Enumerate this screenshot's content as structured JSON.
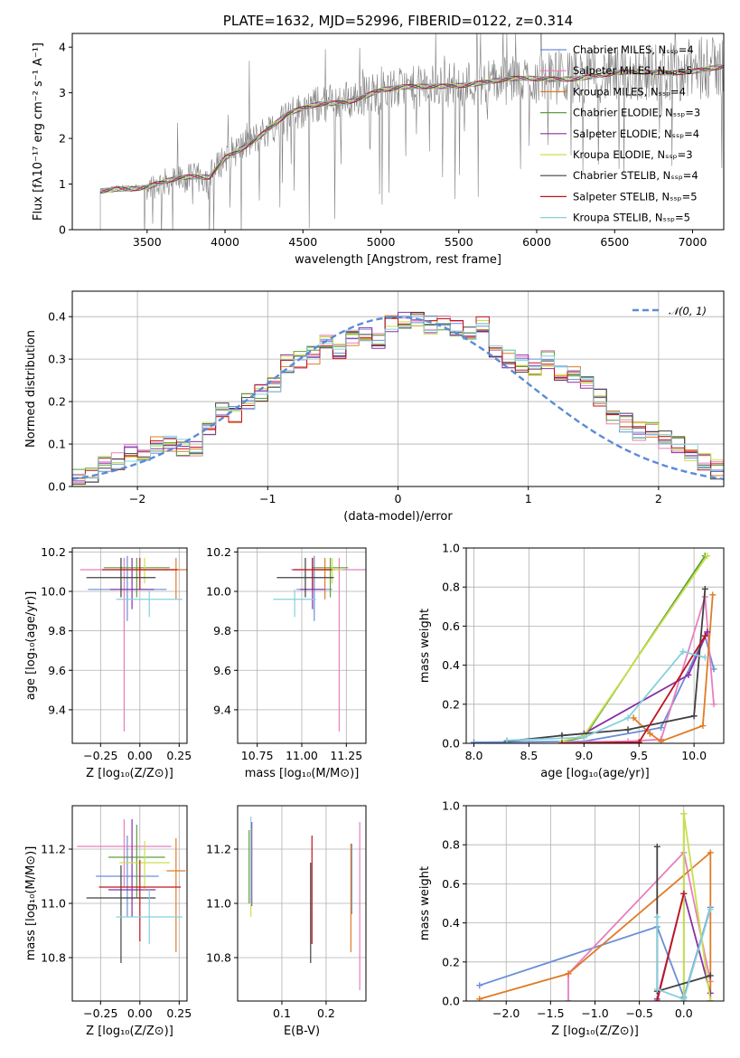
{
  "chart_data": [
    {
      "id": "spectrum",
      "type": "line",
      "title": "PLATE=1632, MJD=52996, FIBERID=0122, z=0.314",
      "xlabel": "wavelength [Angstrom, rest frame]",
      "ylabel": "Flux [fλ10⁻¹⁷ erg cm⁻² s⁻¹ A⁻¹]",
      "xlim": [
        3020,
        7200
      ],
      "ylim": [
        0,
        4.3
      ],
      "xticks": [
        3500,
        4000,
        4500,
        5000,
        5500,
        6000,
        6500,
        7000
      ],
      "yticks": [
        0,
        1,
        2,
        3,
        4
      ],
      "grid": false,
      "legend_position": "top-right",
      "legend": [
        {
          "label": "Chabrier MILES, Nₛₛₚ=4",
          "color": "#6a8fd8"
        },
        {
          "label": "Salpeter MILES, Nₛₛₚ=5",
          "color": "#e77fbe"
        },
        {
          "label": "Kroupa MILES, Nₛₛₚ=4",
          "color": "#e07b27"
        },
        {
          "label": "Chabrier ELODIE, Nₛₛₚ=3",
          "color": "#5e9e3a"
        },
        {
          "label": "Salpeter ELODIE, Nₛₛₚ=4",
          "color": "#8a30a8"
        },
        {
          "label": "Kroupa ELODIE, Nₛₛₚ=3",
          "color": "#c8e04a"
        },
        {
          "label": "Chabrier STELIB, Nₛₛₚ=4",
          "color": "#404040"
        },
        {
          "label": "Salpeter STELIB, Nₛₛₚ=5",
          "color": "#c0141e"
        },
        {
          "label": "Kroupa STELIB, Nₛₛₚ=5",
          "color": "#86d0dc"
        }
      ],
      "continuum": [
        [
          3200,
          0.85
        ],
        [
          3300,
          0.92
        ],
        [
          3500,
          0.95
        ],
        [
          3700,
          1.1
        ],
        [
          3900,
          1.15
        ],
        [
          4000,
          1.6
        ],
        [
          4200,
          2.0
        ],
        [
          4400,
          2.5
        ],
        [
          4600,
          2.75
        ],
        [
          4800,
          2.85
        ],
        [
          5000,
          3.05
        ],
        [
          5200,
          3.1
        ],
        [
          5500,
          3.2
        ],
        [
          6000,
          3.3
        ],
        [
          6500,
          3.4
        ],
        [
          7000,
          3.5
        ],
        [
          7200,
          3.55
        ]
      ]
    },
    {
      "id": "residuals",
      "type": "histogram",
      "xlabel": "(data-model)/error",
      "ylabel": "Normed distribution",
      "xlim": [
        -2.5,
        2.5
      ],
      "ylim": [
        0,
        0.46
      ],
      "xticks": [
        -2,
        -1,
        0,
        1,
        2
      ],
      "yticks": [
        0.0,
        0.1,
        0.2,
        0.3,
        0.4
      ],
      "grid": true,
      "legend_position": "top-right",
      "legend_label": "𝒩(0, 1)",
      "bin_width": 0.1,
      "bins_start": -2.5,
      "base_values": [
        0.02,
        0.03,
        0.05,
        0.06,
        0.08,
        0.08,
        0.1,
        0.1,
        0.09,
        0.09,
        0.13,
        0.18,
        0.17,
        0.2,
        0.22,
        0.24,
        0.29,
        0.3,
        0.31,
        0.34,
        0.32,
        0.35,
        0.36,
        0.34,
        0.38,
        0.39,
        0.39,
        0.38,
        0.39,
        0.37,
        0.36,
        0.38,
        0.31,
        0.3,
        0.29,
        0.28,
        0.3,
        0.27,
        0.26,
        0.24,
        0.21,
        0.17,
        0.15,
        0.13,
        0.13,
        0.11,
        0.1,
        0.08,
        0.06,
        0.04
      ]
    },
    {
      "id": "age-vs-Z",
      "type": "errorbar",
      "xlabel": "Z [log₁₀(Z/Z⊙)]",
      "ylabel": "age  [log₁₀(age/yr)]",
      "xlim": [
        -0.43,
        0.3
      ],
      "ylim": [
        9.23,
        10.22
      ],
      "xticks": [
        -0.25,
        0.0,
        0.25
      ],
      "yticks": [
        9.4,
        9.6,
        9.8,
        10.0,
        10.2
      ],
      "grid": true,
      "points": [
        {
          "x": -0.08,
          "y": 10.01,
          "xerr": 0.25,
          "yerr_lo": 0.16,
          "yerr_hi": 0.17,
          "color": "#6a8fd8"
        },
        {
          "x": -0.1,
          "y": 10.11,
          "xerr": 0.28,
          "yerr_lo": 0.82,
          "yerr_hi": 0.06,
          "color": "#e77fbe"
        },
        {
          "x": 0.23,
          "y": 10.11,
          "xerr": 0.07,
          "yerr_lo": 0.15,
          "yerr_hi": 0.06,
          "color": "#e07b27"
        },
        {
          "x": -0.02,
          "y": 10.12,
          "xerr": 0.21,
          "yerr_lo": 0.15,
          "yerr_hi": 0.05,
          "color": "#5e9e3a"
        },
        {
          "x": -0.05,
          "y": 10.01,
          "xerr": 0.14,
          "yerr_lo": 0.1,
          "yerr_hi": 0.16,
          "color": "#8a30a8"
        },
        {
          "x": 0.03,
          "y": 10.11,
          "xerr": 0.16,
          "yerr_lo": 0.07,
          "yerr_hi": 0.06,
          "color": "#c8e04a"
        },
        {
          "x": -0.12,
          "y": 10.07,
          "xerr": 0.22,
          "yerr_lo": 0.1,
          "yerr_hi": 0.1,
          "color": "#404040"
        },
        {
          "x": 0.0,
          "y": 10.11,
          "xerr": 0.24,
          "yerr_lo": 0.1,
          "yerr_hi": 0.06,
          "color": "#c0141e"
        },
        {
          "x": 0.06,
          "y": 9.96,
          "xerr": 0.21,
          "yerr_lo": 0.09,
          "yerr_hi": 0.05,
          "color": "#86d0dc"
        }
      ]
    },
    {
      "id": "age-vs-mass",
      "type": "errorbar",
      "xlabel": "mass [log₁₀(M/M⊙)]",
      "ylabel": "",
      "xlim": [
        10.64,
        11.36
      ],
      "ylim": [
        9.23,
        10.22
      ],
      "xticks": [
        10.75,
        11.0,
        11.25
      ],
      "yticks": [
        9.4,
        9.6,
        9.8,
        10.0,
        10.2
      ],
      "grid": true,
      "points": [
        {
          "x": 11.07,
          "y": 10.01,
          "xerr": 0.1,
          "yerr_lo": 0.16,
          "yerr_hi": 0.17,
          "color": "#6a8fd8"
        },
        {
          "x": 11.21,
          "y": 10.11,
          "xerr": 0.27,
          "yerr_lo": 0.82,
          "yerr_hi": 0.06,
          "color": "#e77fbe"
        },
        {
          "x": 11.13,
          "y": 10.11,
          "xerr": 0.06,
          "yerr_lo": 0.15,
          "yerr_hi": 0.06,
          "color": "#e07b27"
        },
        {
          "x": 11.16,
          "y": 10.12,
          "xerr": 0.1,
          "yerr_lo": 0.15,
          "yerr_hi": 0.05,
          "color": "#5e9e3a"
        },
        {
          "x": 11.06,
          "y": 10.01,
          "xerr": 0.07,
          "yerr_lo": 0.1,
          "yerr_hi": 0.16,
          "color": "#8a30a8"
        },
        {
          "x": 11.17,
          "y": 10.11,
          "xerr": 0.06,
          "yerr_lo": 0.07,
          "yerr_hi": 0.06,
          "color": "#c8e04a"
        },
        {
          "x": 11.02,
          "y": 10.07,
          "xerr": 0.16,
          "yerr_lo": 0.1,
          "yerr_hi": 0.1,
          "color": "#404040"
        },
        {
          "x": 11.06,
          "y": 10.11,
          "xerr": 0.11,
          "yerr_lo": 0.1,
          "yerr_hi": 0.06,
          "color": "#c0141e"
        },
        {
          "x": 10.96,
          "y": 9.96,
          "xerr": 0.12,
          "yerr_lo": 0.09,
          "yerr_hi": 0.05,
          "color": "#86d0dc"
        }
      ]
    },
    {
      "id": "massweight-vs-age",
      "type": "line",
      "xlabel": "age  [log₁₀(age/yr)]",
      "ylabel": "mass weight",
      "xlim": [
        7.93,
        10.27
      ],
      "ylim": [
        0,
        1.0
      ],
      "xticks": [
        8.0,
        8.5,
        9.0,
        9.5,
        10.0
      ],
      "yticks": [
        0.0,
        0.2,
        0.4,
        0.6,
        0.8,
        1.0
      ],
      "grid": true,
      "series": [
        {
          "color": "#6a8fd8",
          "points": [
            [
              8.0,
              0.005
            ],
            [
              9.0,
              0.01
            ],
            [
              9.7,
              0.08
            ],
            [
              10.1,
              0.55
            ],
            [
              10.18,
              0.38
            ]
          ]
        },
        {
          "color": "#e77fbe",
          "points": [
            [
              8.8,
              0.005
            ],
            [
              9.4,
              0.01
            ],
            [
              9.7,
              0.02
            ],
            [
              10.1,
              0.75
            ],
            [
              10.18,
              0.2
            ]
          ]
        },
        {
          "color": "#e07b27",
          "points": [
            [
              9.45,
              0.13
            ],
            [
              9.6,
              0.05
            ],
            [
              9.7,
              0.01
            ],
            [
              10.08,
              0.09
            ],
            [
              10.17,
              0.76
            ]
          ]
        },
        {
          "color": "#5e9e3a",
          "points": [
            [
              8.8,
              0.01
            ],
            [
              9.0,
              0.03
            ],
            [
              10.1,
              0.96
            ]
          ]
        },
        {
          "color": "#8a30a8",
          "points": [
            [
              8.8,
              0.04
            ],
            [
              9.0,
              0.05
            ],
            [
              9.95,
              0.35
            ],
            [
              10.12,
              0.57
            ]
          ]
        },
        {
          "color": "#c8e04a",
          "points": [
            [
              8.8,
              0.01
            ],
            [
              9.0,
              0.04
            ],
            [
              10.12,
              0.96
            ]
          ]
        },
        {
          "color": "#404040",
          "points": [
            [
              8.3,
              0.01
            ],
            [
              8.8,
              0.04
            ],
            [
              9.4,
              0.07
            ],
            [
              10.0,
              0.14
            ],
            [
              10.1,
              0.79
            ]
          ]
        },
        {
          "color": "#c0141e",
          "points": [
            [
              8.8,
              0.0
            ],
            [
              9.5,
              0.005
            ],
            [
              10.1,
              0.55
            ]
          ]
        },
        {
          "color": "#86d0dc",
          "points": [
            [
              8.3,
              0.015
            ],
            [
              9.0,
              0.03
            ],
            [
              9.4,
              0.13
            ],
            [
              9.9,
              0.47
            ],
            [
              10.1,
              0.44
            ]
          ]
        }
      ]
    },
    {
      "id": "mass-vs-Z",
      "type": "errorbar",
      "xlabel": "Z [log₁₀(Z/Z⊙)]",
      "ylabel": "mass [log₁₀(M/M⊙)]",
      "xlim": [
        -0.43,
        0.3
      ],
      "ylim": [
        10.64,
        11.36
      ],
      "xticks": [
        -0.25,
        0.0,
        0.25
      ],
      "yticks": [
        10.8,
        11.0,
        11.2
      ],
      "grid": true,
      "points": [
        {
          "x": -0.08,
          "y": 11.1,
          "xerr": 0.2,
          "yerr_lo": 0.15,
          "yerr_hi": 0.15,
          "color": "#6a8fd8"
        },
        {
          "x": -0.1,
          "y": 11.21,
          "xerr": 0.3,
          "yerr_lo": 0.15,
          "yerr_hi": 0.1,
          "color": "#e77fbe"
        },
        {
          "x": 0.23,
          "y": 11.12,
          "xerr": 0.06,
          "yerr_lo": 0.3,
          "yerr_hi": 0.12,
          "color": "#e07b27"
        },
        {
          "x": -0.02,
          "y": 11.17,
          "xerr": 0.18,
          "yerr_lo": 0.15,
          "yerr_hi": 0.12,
          "color": "#5e9e3a"
        },
        {
          "x": -0.05,
          "y": 11.05,
          "xerr": 0.15,
          "yerr_lo": 0.1,
          "yerr_hi": 0.26,
          "color": "#8a30a8"
        },
        {
          "x": 0.03,
          "y": 11.15,
          "xerr": 0.16,
          "yerr_lo": 0.1,
          "yerr_hi": 0.08,
          "color": "#c8e04a"
        },
        {
          "x": -0.12,
          "y": 11.02,
          "xerr": 0.22,
          "yerr_lo": 0.24,
          "yerr_hi": 0.12,
          "color": "#404040"
        },
        {
          "x": 0.0,
          "y": 11.06,
          "xerr": 0.26,
          "yerr_lo": 0.2,
          "yerr_hi": 0.1,
          "color": "#c0141e"
        },
        {
          "x": 0.06,
          "y": 10.95,
          "xerr": 0.21,
          "yerr_lo": 0.1,
          "yerr_hi": 0.1,
          "color": "#86d0dc"
        }
      ]
    },
    {
      "id": "mass-vs-ebv",
      "type": "errorbar",
      "xlabel": "E(B-V)",
      "ylabel": "",
      "xlim": [
        0.0,
        0.29
      ],
      "ylim": [
        10.64,
        11.36
      ],
      "xticks": [
        0.1,
        0.2
      ],
      "yticks": [
        10.8,
        11.0,
        11.2
      ],
      "grid": true,
      "points": [
        {
          "x": 0.258,
          "y": 11.11,
          "xerr": 0.0,
          "yerr_lo": 0.15,
          "yerr_hi": 0.11,
          "color": "#6a8fd8"
        },
        {
          "x": 0.276,
          "y": 11.1,
          "xerr": 0.0,
          "yerr_lo": 0.42,
          "yerr_hi": 0.2,
          "color": "#e77fbe"
        },
        {
          "x": 0.256,
          "y": 11.1,
          "xerr": 0.0,
          "yerr_lo": 0.28,
          "yerr_hi": 0.12,
          "color": "#e07b27"
        },
        {
          "x": 0.026,
          "y": 11.15,
          "xerr": 0.0,
          "yerr_lo": 0.15,
          "yerr_hi": 0.12,
          "color": "#5e9e3a"
        },
        {
          "x": 0.032,
          "y": 11.15,
          "xerr": 0.0,
          "yerr_lo": 0.16,
          "yerr_hi": 0.15,
          "color": "#8a30a8"
        },
        {
          "x": 0.03,
          "y": 11.1,
          "xerr": 0.0,
          "yerr_lo": 0.15,
          "yerr_hi": 0.18,
          "color": "#c8e04a"
        },
        {
          "x": 0.165,
          "y": 10.95,
          "xerr": 0.0,
          "yerr_lo": 0.17,
          "yerr_hi": 0.2,
          "color": "#404040"
        },
        {
          "x": 0.168,
          "y": 11.05,
          "xerr": 0.0,
          "yerr_lo": 0.2,
          "yerr_hi": 0.2,
          "color": "#c0141e"
        },
        {
          "x": 0.03,
          "y": 11.1,
          "xerr": 0.0,
          "yerr_lo": 0.1,
          "yerr_hi": 0.22,
          "color": "#86d0dc"
        }
      ]
    },
    {
      "id": "massweight-vs-Z",
      "type": "line",
      "xlabel": "Z [log₁₀(Z/Z⊙)]",
      "ylabel": "mass weight",
      "xlim": [
        -2.45,
        0.45
      ],
      "ylim": [
        0,
        1.0
      ],
      "xticks": [
        -2.0,
        -1.5,
        -1.0,
        -0.5,
        0.0
      ],
      "yticks": [
        0.0,
        0.2,
        0.4,
        0.6,
        0.8,
        1.0
      ],
      "grid": true,
      "series": [
        {
          "color": "#6a8fd8",
          "points": [
            [
              -2.3,
              0.08
            ],
            [
              -0.3,
              0.38
            ],
            [
              0.0,
              0.02
            ],
            [
              0.3,
              0.48
            ]
          ]
        },
        {
          "color": "#e77fbe",
          "points": [
            [
              -1.3,
              0.0
            ],
            [
              -1.3,
              0.14
            ],
            [
              0.0,
              0.76
            ],
            [
              0.3,
              0.1
            ]
          ]
        },
        {
          "color": "#e07b27",
          "points": [
            [
              -2.3,
              0.01
            ],
            [
              -1.3,
              0.14
            ],
            [
              0.3,
              0.76
            ],
            [
              0.3,
              0.0
            ]
          ]
        },
        {
          "color": "#5e9e3a",
          "points": [
            [
              0.0,
              0.0
            ],
            [
              0.0,
              0.96
            ]
          ]
        },
        {
          "color": "#8a30a8",
          "points": [
            [
              -0.3,
              0.01
            ],
            [
              0.0,
              0.55
            ],
            [
              0.3,
              0.04
            ]
          ]
        },
        {
          "color": "#c8e04a",
          "points": [
            [
              0.0,
              0.0
            ],
            [
              0.0,
              0.96
            ],
            [
              0.3,
              0.0
            ]
          ]
        },
        {
          "color": "#404040",
          "points": [
            [
              -0.3,
              0.79
            ],
            [
              -0.3,
              0.05
            ],
            [
              0.3,
              0.13
            ]
          ]
        },
        {
          "color": "#c0141e",
          "points": [
            [
              -0.3,
              0.0
            ],
            [
              0.0,
              0.55
            ]
          ]
        },
        {
          "color": "#86d0dc",
          "points": [
            [
              -0.3,
              0.43
            ],
            [
              -0.3,
              0.06
            ],
            [
              0.0,
              0.01
            ],
            [
              0.3,
              0.47
            ]
          ]
        }
      ]
    }
  ]
}
